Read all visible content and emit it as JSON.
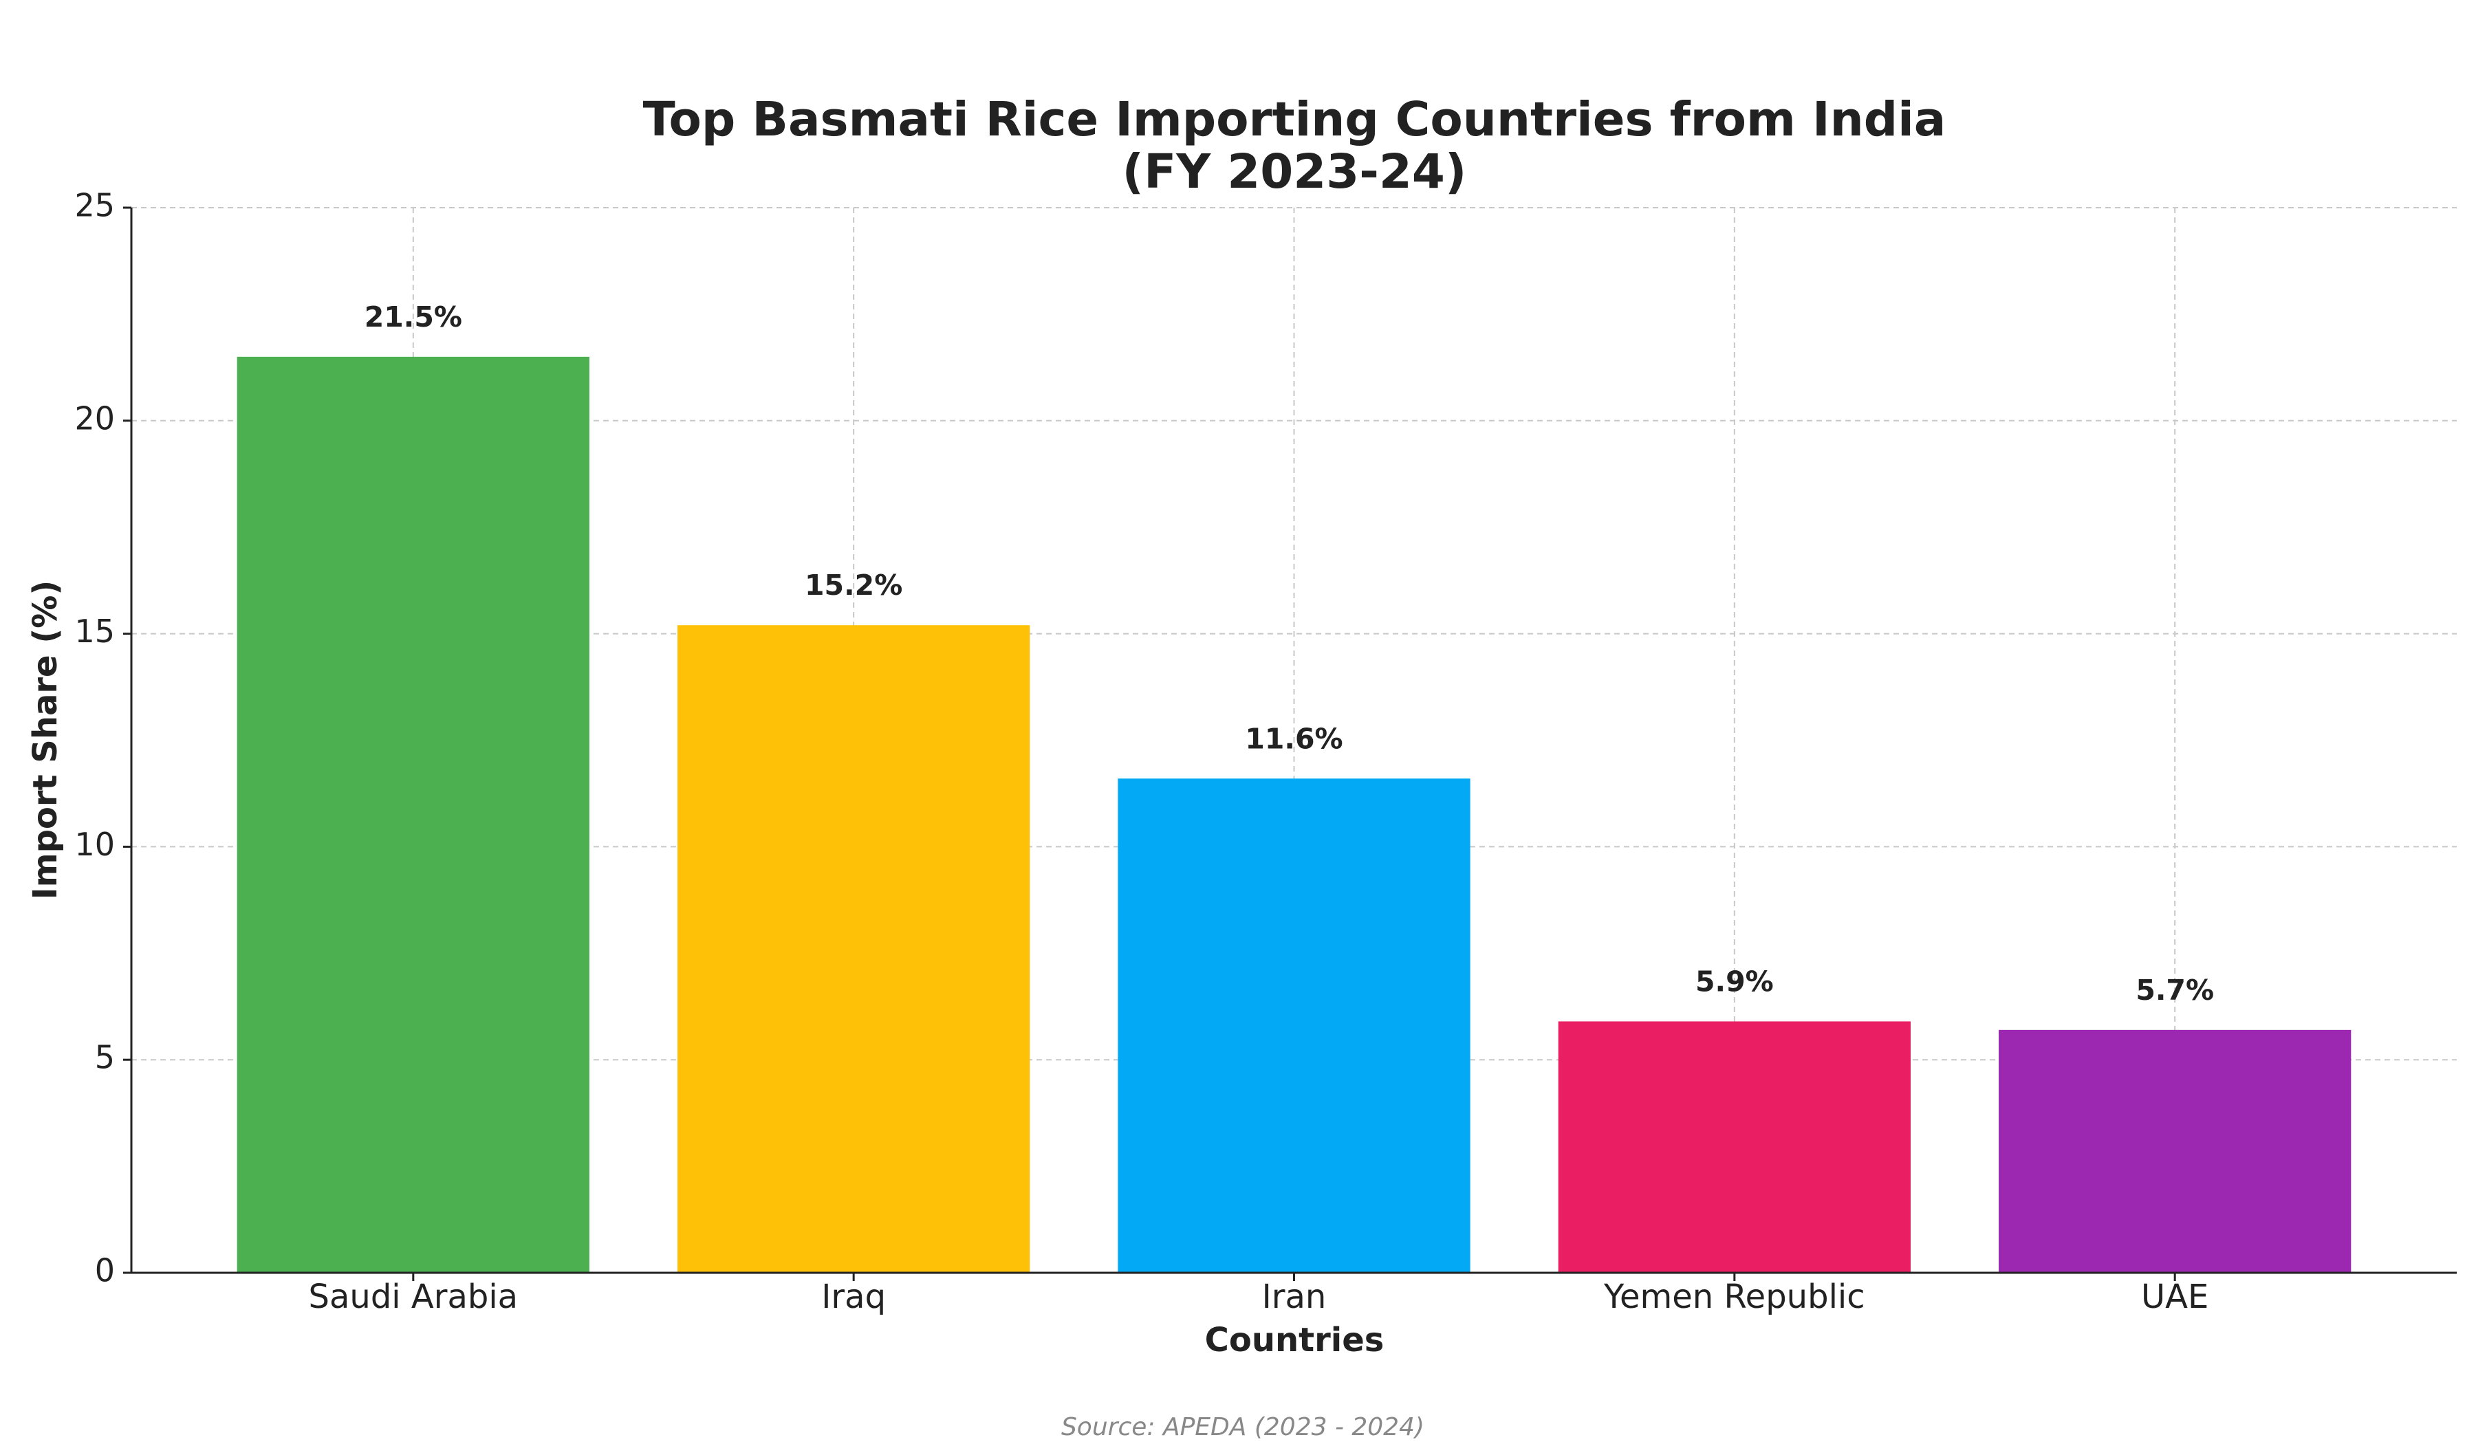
{
  "chart_data": {
    "type": "bar",
    "title": [
      "Top Basmati Rice Importing Countries from India",
      "(FY 2023-24)"
    ],
    "x_label": "Countries",
    "y_label": "Import Share (%)",
    "source": "Source: APEDA (2023 - 2024)",
    "categories": [
      "Saudi Arabia",
      "Iraq",
      "Iran",
      "Yemen Republic",
      "UAE"
    ],
    "values": [
      21.5,
      15.2,
      11.6,
      5.9,
      5.7
    ],
    "value_labels": [
      "21.5%",
      "15.2%",
      "11.6%",
      "5.9%",
      "5.7%"
    ],
    "colors": [
      "#4caf50",
      "#ffc107",
      "#03a9f4",
      "#e91e63",
      "#9c27b0"
    ],
    "ylim": [
      0,
      25
    ],
    "yticks": [
      0,
      5,
      10,
      15,
      20,
      25
    ],
    "grid": true
  }
}
